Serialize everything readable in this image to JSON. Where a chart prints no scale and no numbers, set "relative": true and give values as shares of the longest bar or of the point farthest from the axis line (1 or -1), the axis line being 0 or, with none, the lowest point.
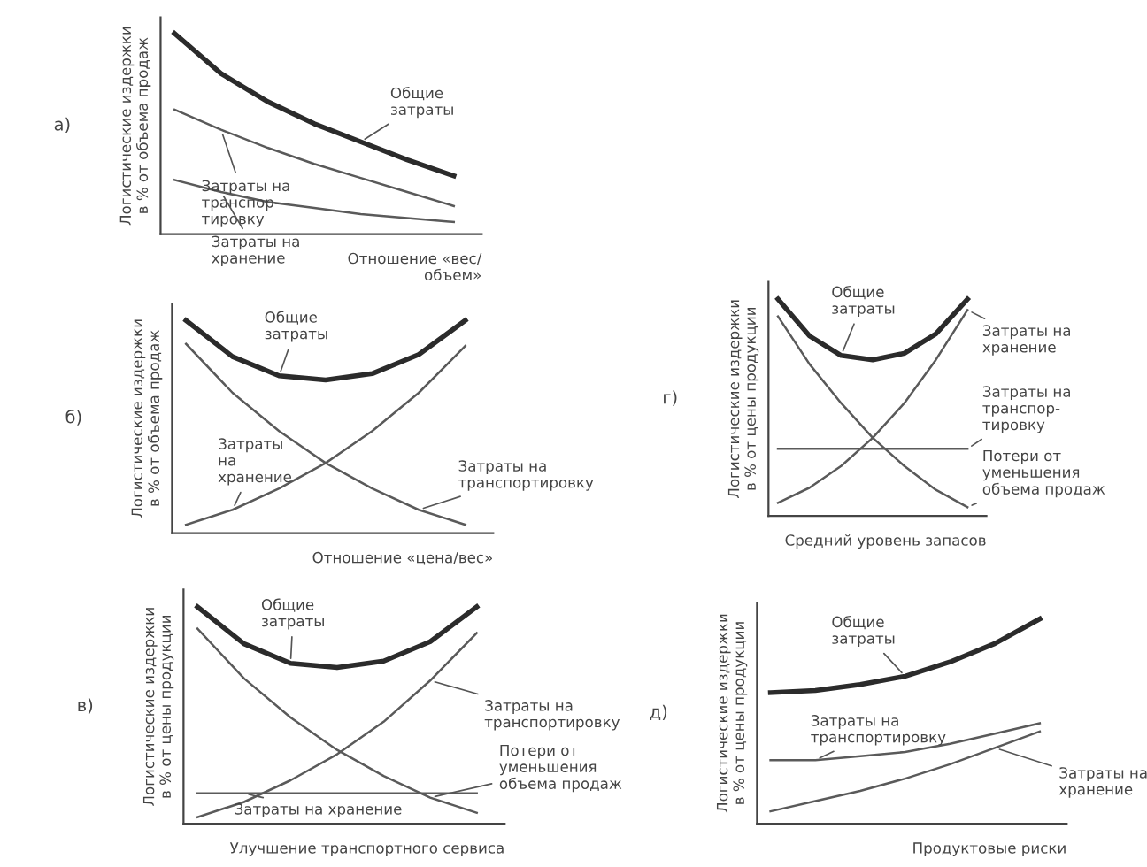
{
  "chart_data": [
    {
      "type": "line",
      "relative": true,
      "title": "а)",
      "ylabel": "Логистические издержки\nв % от объема продаж",
      "xlabel": "Отношение «вес/\nобъем»",
      "categories": [
        null,
        null,
        null,
        null,
        null,
        null,
        null
      ],
      "grid": false,
      "marker": "none",
      "line_style": "solid",
      "series": [
        {
          "name": "Общие\nзатраты",
          "color": "#2b2b2b",
          "values": [
            1.0,
            0.8,
            0.66,
            0.55,
            0.46,
            0.37,
            0.29
          ]
        },
        {
          "name": "Затраты на\nтранспор-\nтировку",
          "color": "#5a5a5a",
          "values": [
            0.62,
            0.52,
            0.43,
            0.35,
            0.28,
            0.21,
            0.14
          ]
        },
        {
          "name": "Затраты на\nхранение",
          "color": "#5a5a5a",
          "values": [
            0.27,
            0.21,
            0.16,
            0.13,
            0.1,
            0.08,
            0.06
          ]
        }
      ]
    },
    {
      "type": "line",
      "relative": true,
      "title": "б)",
      "ylabel": "Логистические издержки\nв % от объема продаж",
      "xlabel": "Отношение «цена/вес»",
      "categories": [
        null,
        null,
        null,
        null,
        null,
        null,
        null
      ],
      "grid": false,
      "marker": "none",
      "line_style": "solid",
      "series": [
        {
          "name": "Общие\nзатраты",
          "color": "#2b2b2b",
          "values": [
            1.0,
            0.83,
            0.74,
            0.72,
            0.75,
            0.84,
            1.0
          ]
        },
        {
          "name": "Затраты\nна\nхранение",
          "color": "#5a5a5a",
          "values": [
            0.04,
            0.11,
            0.21,
            0.33,
            0.48,
            0.66,
            0.88
          ]
        },
        {
          "name": "Затраты на\nтранспортировку",
          "color": "#5a5a5a",
          "values": [
            0.89,
            0.66,
            0.48,
            0.33,
            0.21,
            0.11,
            0.04
          ]
        }
      ]
    },
    {
      "type": "line",
      "relative": true,
      "title": "в)",
      "ylabel": "Логистические издержки\nв % от цены продукции",
      "xlabel": "Улучшение транспортного сервиса",
      "categories": [
        null,
        null,
        null,
        null,
        null,
        null,
        null
      ],
      "grid": false,
      "marker": "none",
      "line_style": "solid",
      "series": [
        {
          "name": "Общие\nзатраты",
          "color": "#2b2b2b",
          "values": [
            1.0,
            0.83,
            0.74,
            0.72,
            0.75,
            0.84,
            1.0
          ]
        },
        {
          "name": "Затраты на\nтранспортировку",
          "color": "#5a5a5a",
          "values": [
            0.03,
            0.1,
            0.2,
            0.32,
            0.47,
            0.66,
            0.88
          ]
        },
        {
          "name": "Потери от\nуменьшения\nобъема продаж",
          "color": "#5a5a5a",
          "values": [
            0.9,
            0.67,
            0.49,
            0.34,
            0.22,
            0.12,
            0.05
          ]
        },
        {
          "name": "Затраты на хранение",
          "color": "#5a5a5a",
          "values": [
            0.14,
            0.14,
            0.14,
            0.14,
            0.14,
            0.14,
            0.14
          ]
        }
      ]
    },
    {
      "type": "line",
      "relative": true,
      "title": "г)",
      "ylabel": "Логистические издержки\nв % от цены продукции",
      "xlabel": "Средний уровень запасов",
      "categories": [
        null,
        null,
        null,
        null,
        null,
        null,
        null
      ],
      "grid": false,
      "marker": "none",
      "line_style": "solid",
      "series": [
        {
          "name": "Общие\nзатраты",
          "color": "#2b2b2b",
          "values": [
            1.0,
            0.83,
            0.74,
            0.72,
            0.75,
            0.84,
            1.0
          ]
        },
        {
          "name": "Затраты на\nтранспор-\nтировку",
          "color": "#5a5a5a",
          "values": [
            0.31,
            0.31,
            0.31,
            0.31,
            0.31,
            0.31,
            0.31
          ]
        },
        {
          "name": "Затраты на\nхранение",
          "color": "#5a5a5a",
          "values": [
            0.06,
            0.13,
            0.23,
            0.36,
            0.52,
            0.72,
            0.95
          ]
        },
        {
          "name": "Потери от\nуменьшения\nобъема продаж",
          "color": "#5a5a5a",
          "values": [
            0.92,
            0.7,
            0.52,
            0.36,
            0.23,
            0.12,
            0.04
          ]
        }
      ]
    },
    {
      "type": "line",
      "relative": true,
      "title": "д)",
      "ylabel": "Логистические издержки\nв % от цены продукции",
      "xlabel": "Продуктовые риски",
      "categories": [
        null,
        null,
        null,
        null,
        null,
        null,
        null
      ],
      "grid": false,
      "marker": "none",
      "line_style": "solid",
      "series": [
        {
          "name": "Общие\nзатраты",
          "color": "#2b2b2b",
          "values": [
            0.64,
            0.65,
            0.68,
            0.72,
            0.79,
            0.88,
            1.0
          ]
        },
        {
          "name": "Затраты на\nтранспортировку",
          "color": "#5a5a5a",
          "values": [
            0.31,
            0.31,
            0.33,
            0.35,
            0.39,
            0.44,
            0.49
          ]
        },
        {
          "name": "Затраты на\nхранение",
          "color": "#5a5a5a",
          "values": [
            0.06,
            0.11,
            0.16,
            0.22,
            0.29,
            0.37,
            0.45
          ]
        }
      ]
    }
  ]
}
